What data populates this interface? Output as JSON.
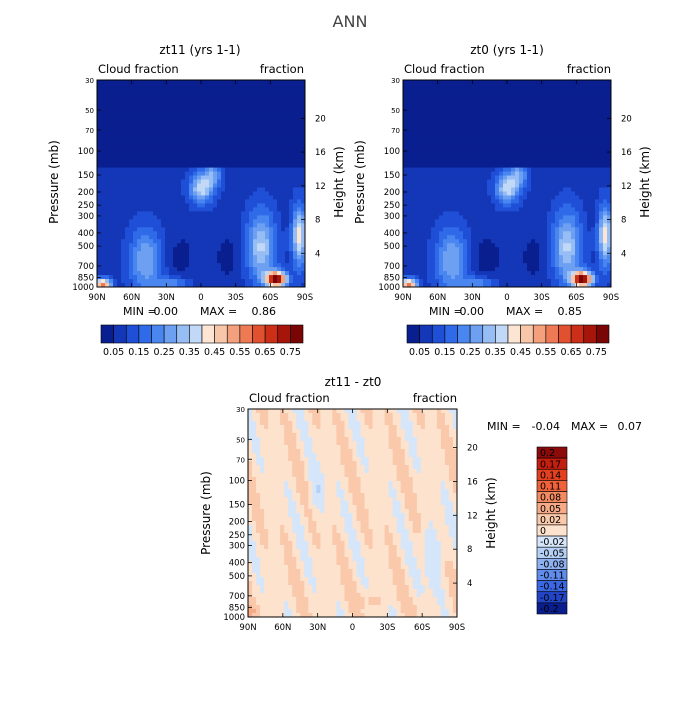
{
  "page": {
    "title": "ANN"
  },
  "chart_data": [
    {
      "type": "heatmap",
      "title": "zt11 (yrs 1-1)",
      "left_label": "Cloud fraction",
      "right_label": "fraction",
      "xlabel": "",
      "ylabel": "Pressure (mb)",
      "y2label": "Height (km)",
      "x_ticks": [
        "90N",
        "60N",
        "30N",
        "0",
        "30S",
        "60S",
        "90S"
      ],
      "y_ticks": [
        30,
        50,
        70,
        100,
        150,
        200,
        250,
        300,
        400,
        500,
        700,
        850,
        1000
      ],
      "ylim": [
        1000,
        30
      ],
      "y_scale": "log",
      "y2_ticks": [
        20,
        16,
        12,
        8,
        4
      ],
      "min_label": "MIN =",
      "min_value": "0.00",
      "max_label": "MAX =",
      "max_value": "0.86",
      "colorbar_ticks": [
        "0.05",
        "0.15",
        "0.25",
        "0.35",
        "0.45",
        "0.55",
        "0.65",
        "0.75"
      ]
    },
    {
      "type": "heatmap",
      "title": "zt0 (yrs 1-1)",
      "left_label": "Cloud fraction",
      "right_label": "fraction",
      "xlabel": "",
      "ylabel": "Pressure (mb)",
      "y2label": "Height (km)",
      "x_ticks": [
        "90N",
        "60N",
        "30N",
        "0",
        "30S",
        "60S",
        "90S"
      ],
      "y_ticks": [
        30,
        50,
        70,
        100,
        150,
        200,
        250,
        300,
        400,
        500,
        700,
        850,
        1000
      ],
      "ylim": [
        1000,
        30
      ],
      "y_scale": "log",
      "y2_ticks": [
        20,
        16,
        12,
        8,
        4
      ],
      "min_label": "MIN =",
      "min_value": "0.00",
      "max_label": "MAX =",
      "max_value": "0.85",
      "colorbar_ticks": [
        "0.05",
        "0.15",
        "0.25",
        "0.35",
        "0.45",
        "0.55",
        "0.65",
        "0.75"
      ]
    },
    {
      "type": "heatmap",
      "title": "zt11 - zt0",
      "left_label": "Cloud fraction",
      "right_label": "fraction",
      "xlabel": "",
      "ylabel": "Pressure (mb)",
      "y2label": "Height (km)",
      "x_ticks": [
        "90N",
        "60N",
        "30N",
        "0",
        "30S",
        "60S",
        "90S"
      ],
      "y_ticks": [
        30,
        50,
        70,
        100,
        150,
        200,
        250,
        300,
        400,
        500,
        700,
        850,
        1000
      ],
      "ylim": [
        1000,
        30
      ],
      "y_scale": "log",
      "y2_ticks": [
        20,
        16,
        12,
        8,
        4
      ],
      "min_label": "MIN =",
      "min_value": "-0.04",
      "max_label": "MAX =",
      "max_value": "0.07",
      "colorbar_ticks": [
        "0.2",
        "0.17",
        "0.14",
        "0.11",
        "0.08",
        "0.05",
        "0.02",
        "0",
        "-0.02",
        "-0.05",
        "-0.08",
        "-0.11",
        "-0.14",
        "-0.17",
        "-0.2"
      ]
    }
  ],
  "colorbars": {
    "horizontal": [
      "#0a1f8f",
      "#1437b8",
      "#1f4fd6",
      "#2f6ae8",
      "#4a86f0",
      "#6ea0f2",
      "#97bdf5",
      "#c1d8f7",
      "#fde5d3",
      "#f8c6a8",
      "#f4a07c",
      "#ee7a55",
      "#e2512f",
      "#cc2f17",
      "#a5150a",
      "#7a0505"
    ],
    "diverging": [
      "#8b0a0a",
      "#c41e10",
      "#e2401f",
      "#f0623a",
      "#f38a62",
      "#f6aa88",
      "#fac8aa",
      "#fde2cd",
      "#d6e6fa",
      "#b7d0f6",
      "#8eb2f1",
      "#5f8ced",
      "#3a67e3",
      "#2145c6",
      "#0b1e8e"
    ]
  }
}
